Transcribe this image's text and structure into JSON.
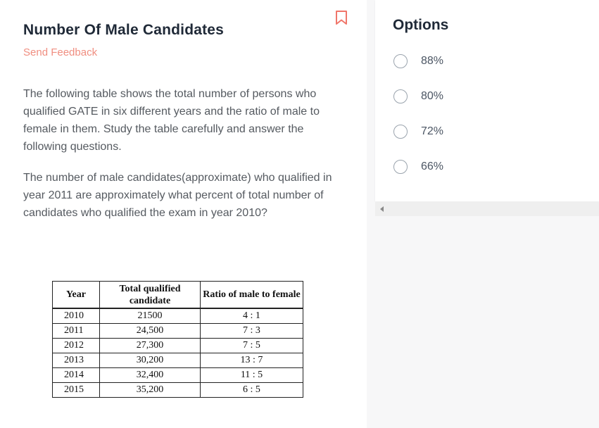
{
  "question": {
    "title": "Number Of Male Candidates",
    "feedback_label": "Send Feedback",
    "intro": "The following table shows the total number of persons who qualified GATE in six different years and the ratio of male to female in them. Study the table carefully and answer the following questions.",
    "prompt": "The number of male candidates(approximate) who qualified in year 2011 are approximately what percent of total number of candidates who qualified the exam in year 2010?",
    "bookmark_icon": "bookmark-icon"
  },
  "table": {
    "headers": [
      "Year",
      "Total qualified candidate",
      "Ratio of male to female"
    ],
    "rows": [
      {
        "year": "2010",
        "total": "21500",
        "ratio": "4 : 1"
      },
      {
        "year": "2011",
        "total": "24,500",
        "ratio": "7 : 3"
      },
      {
        "year": "2012",
        "total": "27,300",
        "ratio": "7 : 5"
      },
      {
        "year": "2013",
        "total": "30,200",
        "ratio": "13 : 7"
      },
      {
        "year": "2014",
        "total": "32,400",
        "ratio": "11 : 5"
      },
      {
        "year": "2015",
        "total": "35,200",
        "ratio": "6 : 5"
      }
    ]
  },
  "options": {
    "title": "Options",
    "items": [
      {
        "label": "88%"
      },
      {
        "label": "80%"
      },
      {
        "label": "72%"
      },
      {
        "label": "66%"
      }
    ]
  },
  "colors": {
    "feedback": "#f08e80",
    "bookmark": "#f0766a",
    "title": "#1f2937",
    "body_text": "#555a60"
  }
}
